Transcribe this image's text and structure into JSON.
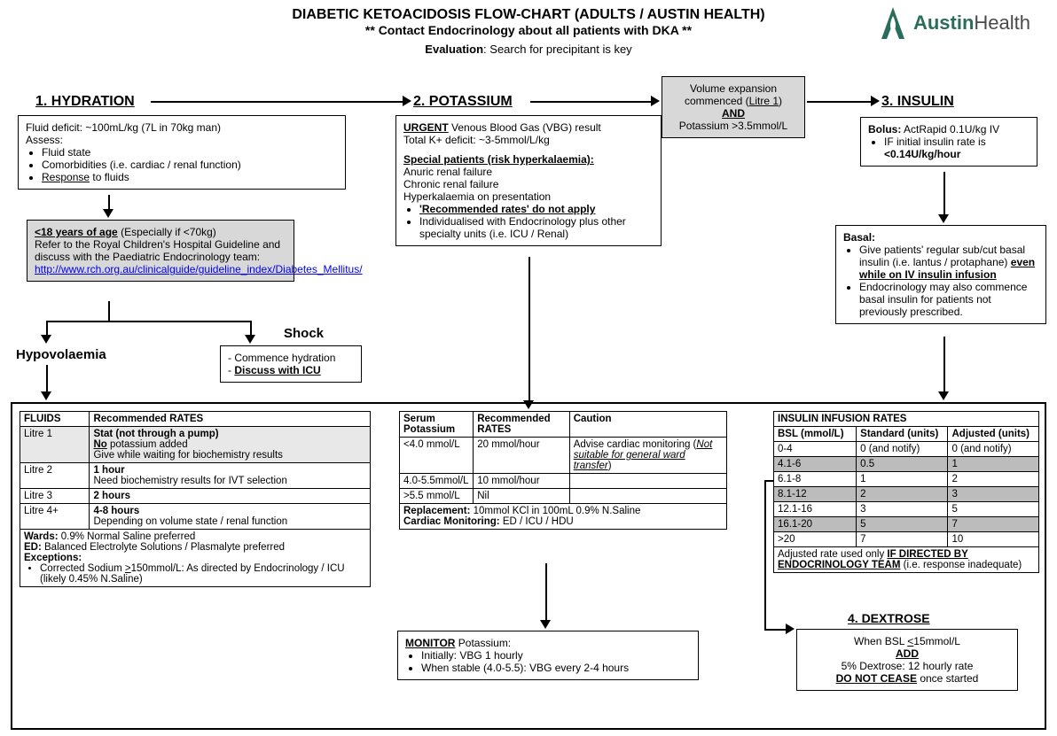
{
  "header": {
    "title": "DIABETIC KETOACIDOSIS FLOW-CHART (ADULTS / AUSTIN HEALTH)",
    "subtitle": "** Contact Endocrinology about all patients with DKA **",
    "eval_label": "Evaluation",
    "eval_text": ": Search for precipitant is key",
    "logo_main": "Austin",
    "logo_sub": "Health"
  },
  "sections": {
    "s1": "1. HYDRATION",
    "s2": "2. POTASSIUM",
    "s3": "3. INSULIN",
    "s4": "4. DEXTROSE"
  },
  "hydration": {
    "deficit": "Fluid deficit: ~100mL/kg (7L in 70kg man)",
    "assess": "Assess:",
    "b1": "Fluid state",
    "b2": "Comorbidities (i.e. cardiac / renal function)",
    "b3_pre": "Response",
    "b3_post": " to fluids",
    "u18_lead": "<18 years of age",
    "u18_rest": " (Especially if <70kg)",
    "u18_l2": "Refer to the Royal Children's Hospital Guideline and discuss with the Paediatric Endocrinology team:",
    "u18_link": "http://www.rch.org.au/clinicalguide/guideline_index/Diabetes_Mellitus/"
  },
  "branches": {
    "hypo": "Hypovolaemia",
    "shock": "Shock",
    "shock_b1": "- Commence hydration",
    "shock_b2_pre": "- ",
    "shock_b2_u": "Discuss with ICU"
  },
  "potassium": {
    "urgent_label": "URGENT",
    "urgent_rest": " Venous Blood Gas (VBG) result",
    "deficit": "Total K+ deficit: ~3-5mmol/L/kg",
    "special_h": "Special patients (risk hyperkalaemia):",
    "sp1": "Anuric renal failure",
    "sp2": "Chronic renal failure",
    "sp3": "Hyperkalaemia on presentation",
    "sp_b1": "'Recommended rates' do not apply",
    "sp_b2": "Individualised with Endocrinology plus other specialty units (i.e. ICU / Renal)"
  },
  "gate": {
    "l1_pre": "Volume expansion commenced (",
    "l1_u": "Litre 1",
    "l1_post": ")",
    "and": "AND",
    "l2": "Potassium >3.5mmol/L"
  },
  "insulin": {
    "bolus_label": "Bolus:",
    "bolus_rest": " ActRapid 0.1U/kg IV",
    "bolus_b1": "IF initial insulin rate is",
    "bolus_b2": "<0.14U/kg/hour",
    "basal_label": "Basal:",
    "basal_b1_pre": "Give patients' regular sub/cut basal insulin (i.e. lantus / protaphane) ",
    "basal_b1_u": "even while on IV insulin infusion",
    "basal_b2": "Endocrinology may also commence basal insulin for patients not previously prescribed."
  },
  "fluids_table": {
    "h1": "FLUIDS",
    "h2": "Recommended RATES",
    "r1c1": "Litre 1",
    "r1c2_l1": "Stat (not through a pump)",
    "r1c2_l2_pre": "No",
    "r1c2_l2_post": " potassium added",
    "r1c2_l3": "Give while waiting for biochemistry results",
    "r2c1": "Litre 2",
    "r2c2_l1": "1 hour",
    "r2c2_l2": "Need biochemistry results for IVT selection",
    "r3c1": "Litre 3",
    "r3c2": "2 hours",
    "r4c1": "Litre 4+",
    "r4c2_l1": "4-8 hours",
    "r4c2_l2": "Depending on volume state / renal function",
    "foot_wards_l": "Wards:",
    "foot_wards": " 0.9% Normal Saline preferred",
    "foot_ed_l": "ED:",
    "foot_ed": " Balanced Electrolyte Solutions / Plasmalyte preferred",
    "foot_exc": "Exceptions:",
    "foot_exc_b_pre": "Corrected Sodium ",
    "foot_exc_b_u": ">",
    "foot_exc_b_rest": "150mmol/L: As directed by Endocrinology / ICU (likely 0.45% N.Saline)"
  },
  "k_table": {
    "h1": "Serum Potassium",
    "h2": "Recommended RATES",
    "h3": "Caution",
    "r1c1": "<4.0 mmol/L",
    "r1c2": "20 mmol/hour",
    "r1c3_pre": "Advise cardiac monitoring (",
    "r1c3_i": "Not suitable for general ward transfer",
    "r1c3_post": ")",
    "r2c1": "4.0-5.5mmol/L",
    "r2c2": "10 mmol/hour",
    "r3c1": ">5.5 mmol/L",
    "r3c2": "Nil",
    "foot1_l": "Replacement:",
    "foot1": " 10mmol KCl in 100mL 0.9% N.Saline",
    "foot2_l": "Cardiac Monitoring:",
    "foot2": " ED / ICU / HDU"
  },
  "monitor": {
    "h": "MONITOR",
    "h_rest": " Potassium:",
    "b1": "Initially: VBG 1 hourly",
    "b2": "When stable (4.0-5.5): VBG every 2-4 hours"
  },
  "ins_table": {
    "title": "INSULIN INFUSION RATES",
    "h1": "BSL (mmol/L)",
    "h2": "Standard (units)",
    "h3": "Adjusted (units)",
    "rows": [
      [
        "0-4",
        "0 (and notify)",
        "0 (and notify)"
      ],
      [
        "4.1-6",
        "0.5",
        "1"
      ],
      [
        "6.1-8",
        "1",
        "2"
      ],
      [
        "8.1-12",
        "2",
        "3"
      ],
      [
        "12.1-16",
        "3",
        "5"
      ],
      [
        "16.1-20",
        "5",
        "7"
      ],
      [
        ">20",
        "7",
        "10"
      ]
    ],
    "foot_pre": "Adjusted rate used only ",
    "foot_u": "IF DIRECTED BY ENDOCRINOLOGY TEAM",
    "foot_post": " (i.e. response inadequate)"
  },
  "dextrose": {
    "l1_pre": "When BSL ",
    "l1_u": "<",
    "l1_post": "15mmol/L",
    "add": "ADD",
    "l2": "5% Dextrose: 12 hourly rate",
    "l3_u": "DO NOT CEASE",
    "l3_post": " once started"
  },
  "colors": {
    "logo": "#2a6d5a"
  }
}
